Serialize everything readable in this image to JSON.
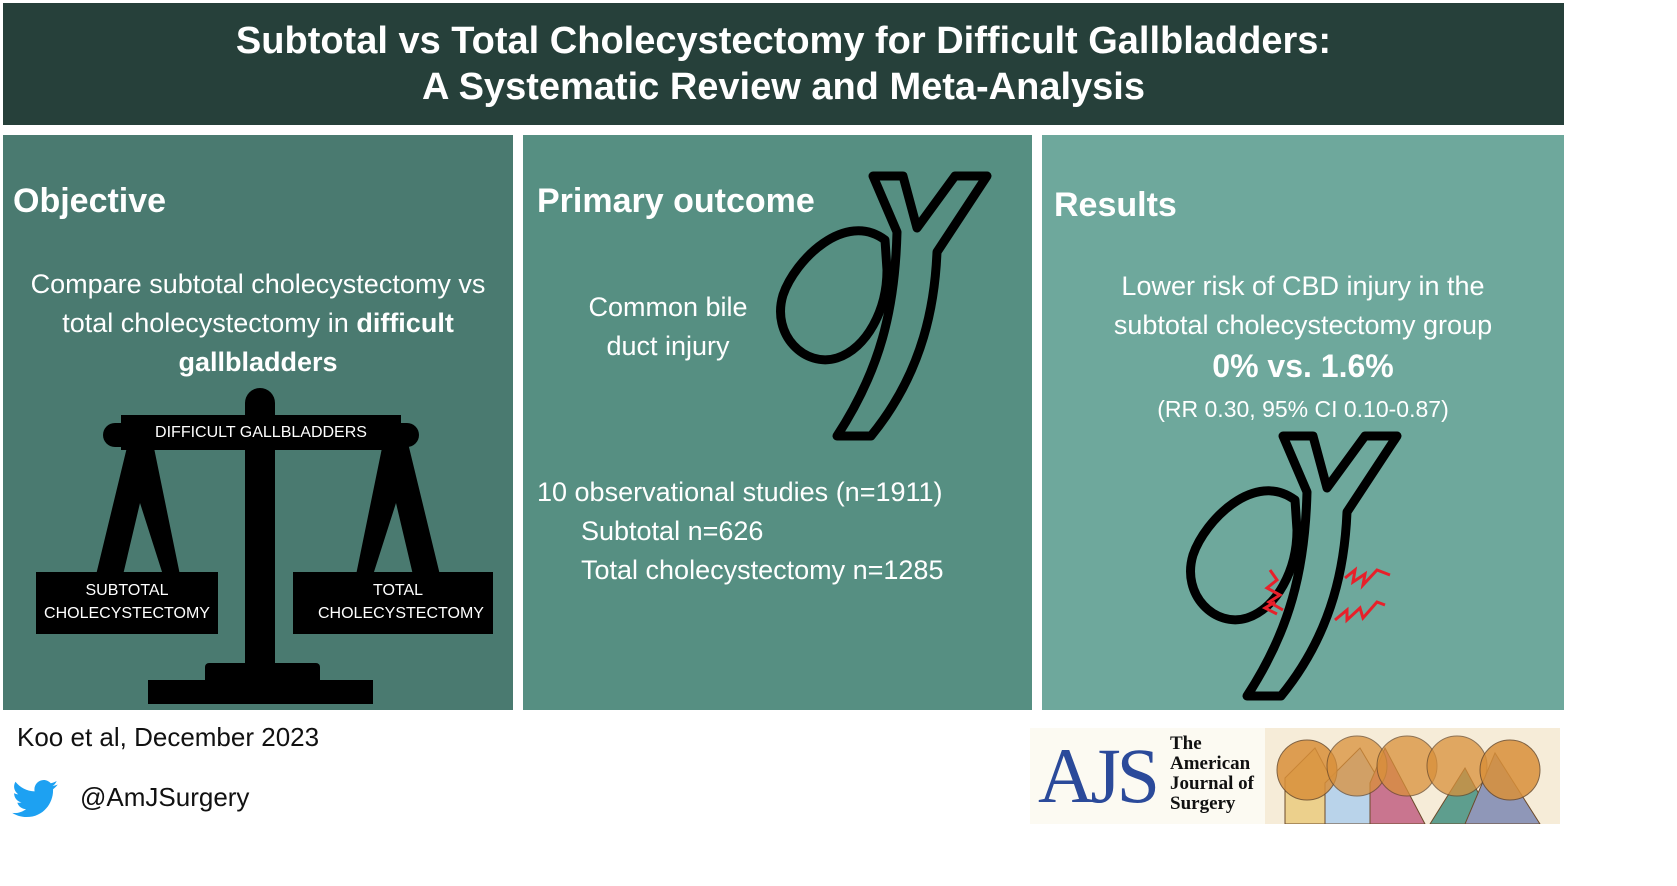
{
  "header": {
    "title_line1": "Subtotal vs Total Cholecystectomy for Difficult Gallbladders:",
    "title_line2": "A Systematic Review and Meta-Analysis"
  },
  "objective": {
    "title": "Objective",
    "text_plain": "Compare subtotal cholecystectomy vs total cholecystectomy in ",
    "text_bold": "difficult gallbladders",
    "scale_beam": "DIFFICULT GALLBLADDERS",
    "left_pan": "SUBTOTAL CHOLECYSTECTOMY",
    "right_pan": "TOTAL CHOLECYSTECTOMY"
  },
  "primary": {
    "title": "Primary outcome",
    "outcome_line1": "Common bile",
    "outcome_line2": "duct injury",
    "studies": "10 observational studies (n=1911)",
    "subtotal": "Subtotal n=626",
    "total": "Total cholecystectomy n=1285"
  },
  "results": {
    "title": "Results",
    "line1": "Lower risk of CBD injury in the",
    "line2": "subtotal cholecystectomy group",
    "headline": "0% vs. 1.6%",
    "stats": "(RR 0.30, 95% CI 0.10-0.87)"
  },
  "footer": {
    "citation": "Koo et al, December 2023",
    "twitter": "@AmJSurgery",
    "journal_logo": "AJS The American Journal of Surgery"
  },
  "colors": {
    "header": "#26403a",
    "panel1": "#4a7a70",
    "panel2": "#568f82",
    "panel3": "#6ea89c",
    "injury": "#e8202a",
    "twitter": "#1da1f2",
    "ajs_blue": "#2b4a9a"
  }
}
